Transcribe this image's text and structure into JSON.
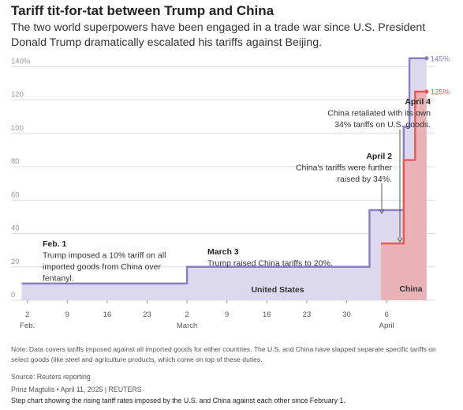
{
  "header": {
    "title": "Tariff tit-for-tat between Trump and China",
    "subtitle": "The two world superpowers have been engaged in a trade war since U.S. President Donald Trump dramatically escalated his tariffs against Beijing."
  },
  "chart_data": {
    "type": "line",
    "step": true,
    "x_start": "Feb. 1",
    "ylim": [
      0,
      145
    ],
    "y_ticks": [
      0,
      20,
      40,
      60,
      80,
      100,
      120,
      140
    ],
    "y_tick_labels": [
      "0",
      "20",
      "40",
      "60",
      "80",
      "100",
      "120",
      "140%"
    ],
    "x_tick_labels": [
      {
        "day": 2,
        "line1": "2",
        "line2": "Feb."
      },
      {
        "day": 9,
        "line1": "9",
        "line2": ""
      },
      {
        "day": 16,
        "line1": "16",
        "line2": ""
      },
      {
        "day": 23,
        "line1": "23",
        "line2": ""
      },
      {
        "day": 30,
        "line1": "2",
        "line2": "March"
      },
      {
        "day": 37,
        "line1": "9",
        "line2": ""
      },
      {
        "day": 44,
        "line1": "16",
        "line2": ""
      },
      {
        "day": 51,
        "line1": "23",
        "line2": ""
      },
      {
        "day": 58,
        "line1": "30",
        "line2": ""
      },
      {
        "day": 65,
        "line1": "6",
        "line2": "April"
      }
    ],
    "grid": true,
    "series": [
      {
        "name": "United States",
        "color": "#8a7ec4",
        "fill": "#dcd8ee",
        "points": [
          [
            1,
            10
          ],
          [
            30,
            10
          ],
          [
            30,
            20
          ],
          [
            62,
            20
          ],
          [
            62,
            54
          ],
          [
            68,
            54
          ],
          [
            68,
            104
          ],
          [
            69,
            104
          ],
          [
            69,
            145
          ],
          [
            72,
            145
          ]
        ],
        "end_label": "145%"
      },
      {
        "name": "China",
        "color": "#e8594e",
        "fill": "#eab3b7",
        "points": [
          [
            64,
            34
          ],
          [
            68,
            34
          ],
          [
            68,
            84
          ],
          [
            70,
            84
          ],
          [
            70,
            125
          ],
          [
            72,
            125
          ]
        ],
        "end_label": "125%"
      }
    ],
    "annotations": [
      {
        "id": "feb1",
        "head": "Feb. 1",
        "lines": [
          "Trump imposed a 10% tariff on all",
          "imported goods from China over",
          "fentanyl."
        ]
      },
      {
        "id": "mar3",
        "head": "March 3",
        "lines": [
          "Trump raised China tariffs to 20%."
        ]
      },
      {
        "id": "apr2",
        "head": "April 2",
        "lines": [
          "China's tariffs were further",
          "raised by 34%."
        ]
      },
      {
        "id": "apr4",
        "head": "April 4",
        "lines": [
          "China retaliated with its own",
          "34% tariffs on U.S. goods."
        ]
      }
    ]
  },
  "footer": {
    "note": "Note: Data covers tariffs imposed against all imported goods for either countries. The U.S. and China have slapped separate specific tariffs on select goods (like steel and agriculture products, which come on top of these duties.",
    "source": "Source: Reuters reporting",
    "credit": "Prinz Magtulis • April 11, 2025 | REUTERS",
    "alt_text": "Step chart showing the rising tariff rates imposed by the U.S. and China against each other since February 1."
  }
}
